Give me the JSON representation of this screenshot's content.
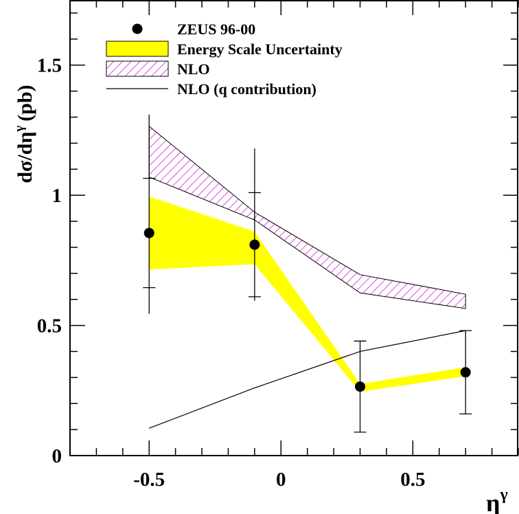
{
  "chart_data": {
    "type": "scatter",
    "xlabel": "η",
    "xlabel_sup": "γ",
    "ylabel_main": "dσ/dη",
    "ylabel_sup": "γ",
    "ylabel_unit": "(pb)",
    "xlim": [
      -0.8,
      0.9
    ],
    "ylim": [
      0,
      1.75
    ],
    "x_ticks": [
      -0.5,
      0,
      0.5
    ],
    "x_tick_labels": [
      "-0.5",
      "0",
      "0.5"
    ],
    "y_ticks": [
      0,
      0.5,
      1,
      1.5
    ],
    "y_tick_labels": [
      "0",
      "0.5",
      "1",
      "1.5"
    ],
    "grid": false,
    "legend_position": "top-left",
    "legend": [
      {
        "label": "ZEUS 96-00",
        "symbol": "marker"
      },
      {
        "label": "Energy Scale Uncertainty",
        "symbol": "yellow-box"
      },
      {
        "label": "NLO",
        "symbol": "hatched-box"
      },
      {
        "label": "NLO (q contribution)",
        "symbol": "line"
      }
    ],
    "data_points": {
      "name": "ZEUS 96-00",
      "x": [
        -0.5,
        -0.1,
        0.3,
        0.7
      ],
      "y": [
        0.855,
        0.81,
        0.265,
        0.32
      ],
      "stat_err_low": [
        0.21,
        0.2,
        0.175,
        0.16
      ],
      "stat_err_high": [
        0.21,
        0.2,
        0.175,
        0.16
      ],
      "total_err_low": [
        0.31,
        0.215,
        0.175,
        0.16
      ],
      "total_err_high": [
        0.455,
        0.37,
        0.175,
        0.16
      ]
    },
    "energy_scale_band": {
      "name": "Energy Scale Uncertainty",
      "x": [
        -0.5,
        -0.1,
        0.3,
        0.7
      ],
      "upper": [
        0.995,
        0.86,
        0.275,
        0.34
      ],
      "lower": [
        0.715,
        0.735,
        0.245,
        0.305
      ]
    },
    "nlo_band": {
      "name": "NLO",
      "x": [
        -0.5,
        -0.1,
        0.3,
        0.7
      ],
      "upper": [
        1.265,
        0.935,
        0.695,
        0.62
      ],
      "lower": [
        1.07,
        0.905,
        0.625,
        0.565
      ]
    },
    "nlo_q_line": {
      "name": "NLO (q contribution)",
      "x": [
        -0.5,
        -0.1,
        0.3,
        0.7
      ],
      "y": [
        0.105,
        0.26,
        0.4,
        0.48
      ]
    },
    "colors": {
      "band_fill": "#ffff00",
      "hatch": "#cc00cc",
      "line": "#000000",
      "marker": "#000000"
    }
  }
}
